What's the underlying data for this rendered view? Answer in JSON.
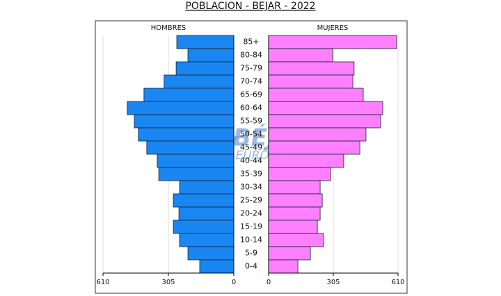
{
  "chart_data": {
    "type": "pyramid",
    "title": "POBLACION - BEJAR - 2022",
    "categories": [
      "85+",
      "80-84",
      "75-79",
      "70-74",
      "65-69",
      "60-64",
      "55-59",
      "50-54",
      "45-49",
      "40-44",
      "35-39",
      "30-34",
      "25-29",
      "20-24",
      "15-19",
      "10-14",
      "5-9",
      "0-4"
    ],
    "series": [
      {
        "name": "HOMBRES",
        "color": "#1a86f2",
        "values": [
          266,
          214,
          269,
          325,
          419,
          497,
          464,
          445,
          406,
          357,
          350,
          253,
          282,
          256,
          282,
          253,
          214,
          159
        ]
      },
      {
        "name": "MUJERES",
        "color": "#ff80ff",
        "values": [
          603,
          302,
          403,
          397,
          446,
          538,
          528,
          459,
          430,
          354,
          292,
          243,
          253,
          243,
          230,
          259,
          197,
          138
        ]
      }
    ],
    "xlim": [
      0,
      610
    ],
    "xticks": [
      0,
      305,
      610
    ],
    "grid": true,
    "watermark": [
      "BÉJAR",
      "en EUROPA"
    ]
  }
}
